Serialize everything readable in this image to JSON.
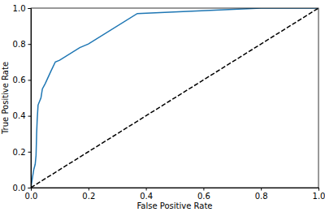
{
  "chart_data": {
    "type": "line",
    "x_label": "False Positive Rate",
    "y_label": "True Positive Rate",
    "xlim": [
      0,
      1
    ],
    "ylim": [
      0,
      1
    ],
    "xticks": [
      {
        "value": 0,
        "label": "0.0"
      },
      {
        "value": 0.2,
        "label": "0.2"
      },
      {
        "value": 0.4,
        "label": "0.4"
      },
      {
        "value": 0.6,
        "label": "0.6"
      },
      {
        "value": 0.8,
        "label": "0.8"
      },
      {
        "value": 1,
        "label": "1.0"
      }
    ],
    "yticks": [
      {
        "value": 0,
        "label": "0.0"
      },
      {
        "value": 0.2,
        "label": "0.2"
      },
      {
        "value": 0.4,
        "label": "0.4"
      },
      {
        "value": 0.6,
        "label": "0.6"
      },
      {
        "value": 0.8,
        "label": "0.8"
      },
      {
        "value": 1,
        "label": "1.0"
      }
    ],
    "series": [
      {
        "color": "#1f77b4",
        "line_style": "solid",
        "x": [
          0,
          0.005,
          0.01,
          0.015,
          0.018,
          0.02,
          0.022,
          0.025,
          0.035,
          0.04,
          0.05,
          0.07,
          0.085,
          0.1,
          0.17,
          0.2,
          0.37,
          0.8,
          1.0
        ],
        "values": [
          0,
          0.05,
          0.1,
          0.13,
          0.18,
          0.3,
          0.38,
          0.46,
          0.5,
          0.55,
          0.58,
          0.65,
          0.7,
          0.71,
          0.78,
          0.8,
          0.97,
          1.0,
          1.0
        ]
      },
      {
        "color": "#000000",
        "line_style": "dashed",
        "x": [
          0,
          1
        ],
        "values": [
          0,
          1
        ]
      }
    ]
  }
}
